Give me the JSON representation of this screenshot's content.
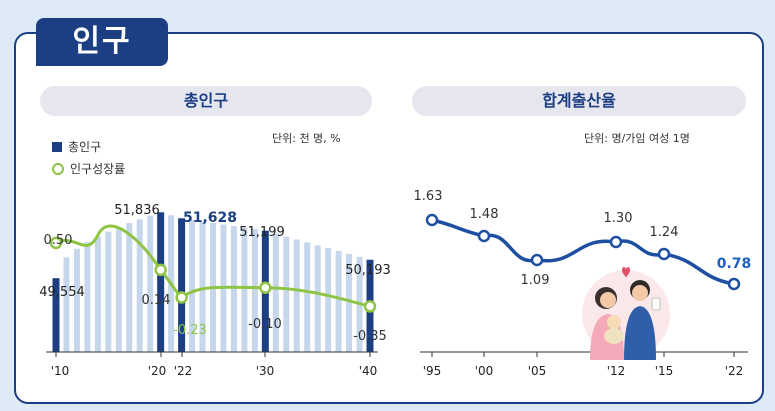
{
  "header": {
    "title": "인구"
  },
  "left": {
    "title": "총인구",
    "unit": "단위: 천 명, %",
    "legend": {
      "bars": "총인구",
      "line": "인구성장률"
    },
    "colors": {
      "bar_highlight": "#1c3f84",
      "bar_stripe_light": "#c6d7ec",
      "line": "#8ec443"
    }
  },
  "right": {
    "title": "합계출산율",
    "unit": "단위: 명/가임 여성 1명",
    "colors": {
      "line": "#1f4fa2",
      "accent": "#1f5fbf"
    }
  },
  "chart_data": [
    {
      "type": "bar",
      "title": "총인구",
      "unit": "단위: 천 명, %",
      "x_tick_labels": [
        "'10",
        "'20",
        "'22",
        "'30",
        "'40"
      ],
      "series": [
        {
          "name": "총인구",
          "x": [
            2010,
            2020,
            2022,
            2030,
            2040
          ],
          "values": [
            49554,
            51836,
            51628,
            51199,
            50193
          ],
          "labels": [
            "49,554",
            "51,836",
            "51,628",
            "51,199",
            "50,193"
          ]
        },
        {
          "name": "인구성장률",
          "type": "line",
          "x": [
            2010,
            2020,
            2022,
            2030,
            2040
          ],
          "values": [
            0.5,
            0.14,
            -0.23,
            -0.1,
            -0.35
          ],
          "labels": [
            "0.50",
            "0.14",
            "-0.23",
            "-0.10",
            "-0.35"
          ]
        }
      ]
    },
    {
      "type": "line",
      "title": "합계출산율",
      "unit": "단위: 명/가임 여성 1명",
      "x_tick_labels": [
        "'95",
        "'00",
        "'05",
        "'12",
        "'15",
        "'22"
      ],
      "series": [
        {
          "x": [
            1995,
            2000,
            2005,
            2012,
            2015,
            2022
          ],
          "values": [
            1.63,
            1.48,
            1.09,
            1.3,
            1.24,
            0.78
          ],
          "labels": [
            "1.63",
            "1.48",
            "1.09",
            "1.30",
            "1.24",
            "0.78"
          ]
        }
      ]
    }
  ]
}
